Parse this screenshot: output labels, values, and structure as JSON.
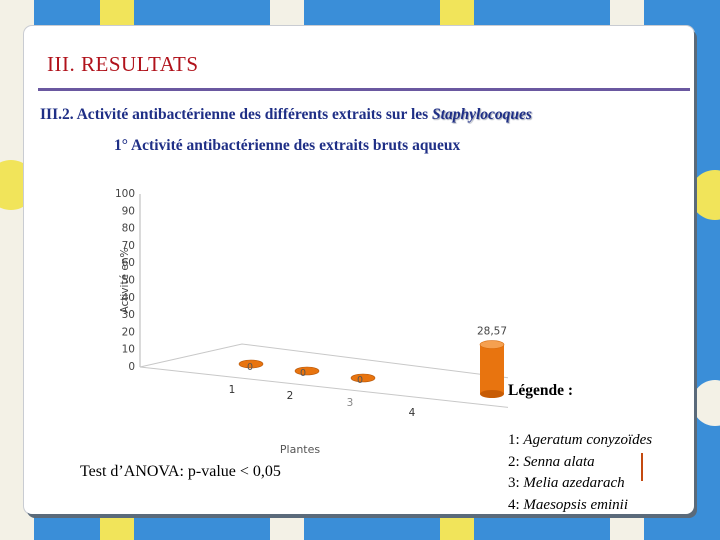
{
  "slide": {
    "title": "III. RESULTATS",
    "subtitle_prefix": "III.2. Activité antibactérienne des différents extraits sur les ",
    "subtitle_emphasis": "Staphylocoques",
    "section": "1° Activité antibactérienne des extraits bruts aqueux",
    "anova": "Test d’ANOVA: p-value < 0,05"
  },
  "legend": {
    "title": "Légende :",
    "items": [
      {
        "num": "1:",
        "name": "Ageratum conyzoïdes"
      },
      {
        "num": "2:",
        "name": "Senna alata"
      },
      {
        "num": "3:",
        "name": "Melia azedarach"
      },
      {
        "num": "4:",
        "name": "Maesopsis eminii"
      }
    ]
  },
  "colors": {
    "background": "#3a8ed8",
    "title": "#b0121b",
    "subtitle": "#1f2f86",
    "rule": "#6a58a0",
    "bar": "#e8740f"
  },
  "chart_data": {
    "type": "bar",
    "categories": [
      "1",
      "2",
      "3",
      "4"
    ],
    "values": [
      0,
      0,
      0,
      28.57
    ],
    "data_labels": [
      "0",
      "0",
      "0",
      "28,57"
    ],
    "xlabel": "Plantes",
    "ylabel": "Activité en%",
    "ylim": [
      0,
      100
    ],
    "yticks": [
      0,
      10,
      20,
      30,
      40,
      50,
      60,
      70,
      80,
      90,
      100
    ],
    "style": "3d-cylinder",
    "grid": false
  }
}
